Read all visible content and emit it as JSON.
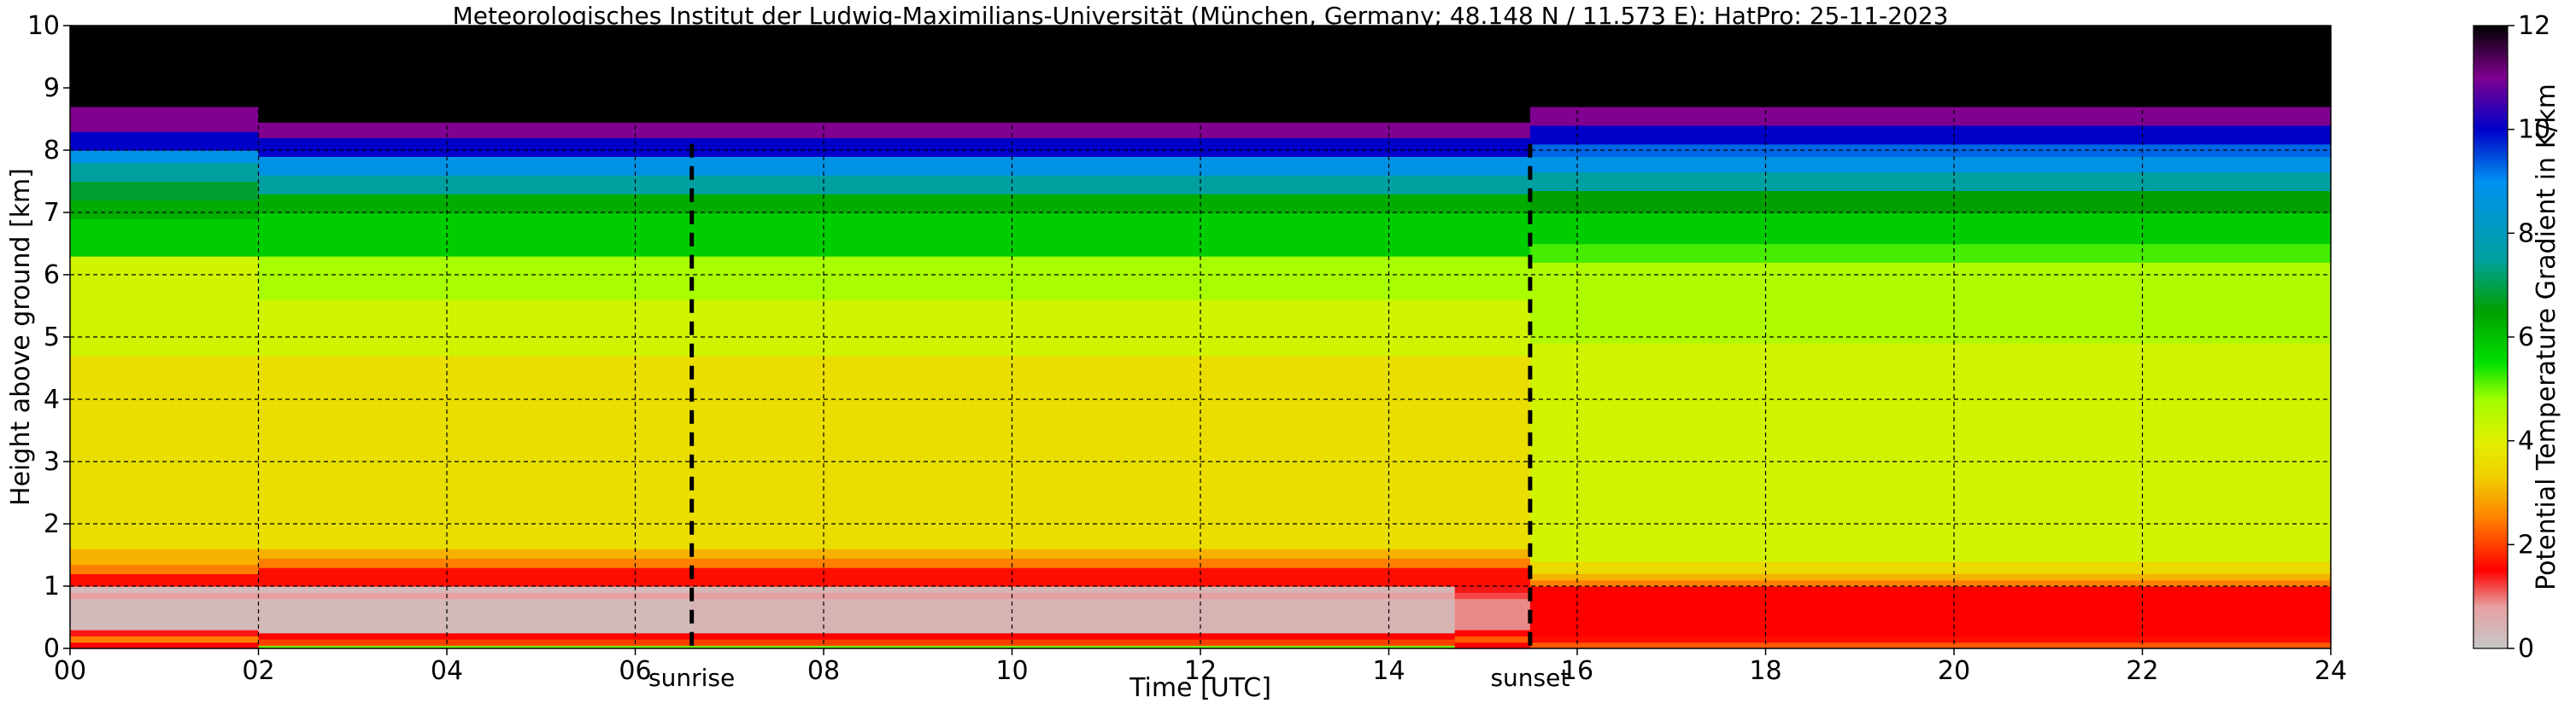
{
  "chart_data": {
    "type": "heatmap",
    "title": "Meteorologisches Institut der Ludwig-Maximilians-Universität (München, Germany; 48.148 N / 11.573 E):    HatPro: 25-11-2023",
    "xlabel": "Time [UTC]",
    "ylabel": "Height above ground [km]",
    "xlim": [
      0,
      24
    ],
    "ylim": [
      0,
      10
    ],
    "x_ticks": [
      0,
      2,
      4,
      6,
      8,
      10,
      12,
      14,
      16,
      18,
      20,
      22,
      24
    ],
    "x_tick_labels": [
      "00",
      "02",
      "04",
      "06",
      "08",
      "10",
      "12",
      "14",
      "16",
      "18",
      "20",
      "22",
      "24"
    ],
    "y_ticks": [
      0,
      1,
      2,
      3,
      4,
      5,
      6,
      7,
      8,
      9,
      10
    ],
    "y_tick_labels": [
      "0",
      "1",
      "2",
      "3",
      "4",
      "5",
      "6",
      "7",
      "8",
      "9",
      "10"
    ],
    "grid": true,
    "colorbar": {
      "label": "Potential Temperature Gradient in K/km",
      "range": [
        0,
        12
      ],
      "ticks": [
        0,
        2,
        4,
        6,
        8,
        10,
        12
      ],
      "tick_labels": [
        "0",
        "2",
        "4",
        "6",
        "8",
        "10",
        "12"
      ],
      "colors": [
        {
          "value": 0,
          "color": "#c8c8c8"
        },
        {
          "value": 0.8,
          "color": "#e6a0a0"
        },
        {
          "value": 1.5,
          "color": "#ff0000"
        },
        {
          "value": 2.5,
          "color": "#ff8000"
        },
        {
          "value": 3.3,
          "color": "#f0d000"
        },
        {
          "value": 4.0,
          "color": "#e0f000"
        },
        {
          "value": 4.8,
          "color": "#a0ff00"
        },
        {
          "value": 5.5,
          "color": "#00e000"
        },
        {
          "value": 6.5,
          "color": "#00a000"
        },
        {
          "value": 7.5,
          "color": "#00a0a0"
        },
        {
          "value": 9.0,
          "color": "#0090f0"
        },
        {
          "value": 10.0,
          "color": "#0000c8"
        },
        {
          "value": 11.0,
          "color": "#800090"
        },
        {
          "value": 12.0,
          "color": "#000000"
        }
      ]
    },
    "markers": [
      {
        "label": "sunrise",
        "time": 6.6
      },
      {
        "label": "sunset",
        "time": 15.5
      }
    ],
    "time_segments": [
      {
        "name": "night-early",
        "start": 0,
        "end": 2
      },
      {
        "name": "morning",
        "start": 2,
        "end": 6.6
      },
      {
        "name": "day",
        "start": 6.6,
        "end": 14.7
      },
      {
        "name": "late-afternoon",
        "start": 14.7,
        "end": 15.5
      },
      {
        "name": "evening",
        "start": 15.5,
        "end": 24
      }
    ],
    "profiles": {
      "night-early": [
        {
          "from": 0.0,
          "to": 0.1,
          "value": 1.5
        },
        {
          "from": 0.1,
          "to": 0.2,
          "value": 2.5
        },
        {
          "from": 0.2,
          "to": 0.3,
          "value": 1.4
        },
        {
          "from": 0.3,
          "to": 0.8,
          "value": 0.3
        },
        {
          "from": 0.8,
          "to": 0.9,
          "value": 0.8
        },
        {
          "from": 0.9,
          "to": 1.0,
          "value": 0.3
        },
        {
          "from": 1.0,
          "to": 1.2,
          "value": 1.6
        },
        {
          "from": 1.2,
          "to": 1.35,
          "value": 2.5
        },
        {
          "from": 1.35,
          "to": 1.6,
          "value": 3.0
        },
        {
          "from": 1.6,
          "to": 4.7,
          "value": 3.6
        },
        {
          "from": 4.7,
          "to": 6.3,
          "value": 4.2
        },
        {
          "from": 6.3,
          "to": 6.9,
          "value": 5.8
        },
        {
          "from": 6.9,
          "to": 7.2,
          "value": 6.3
        },
        {
          "from": 7.2,
          "to": 7.5,
          "value": 6.8
        },
        {
          "from": 7.5,
          "to": 7.8,
          "value": 7.5
        },
        {
          "from": 7.8,
          "to": 8.0,
          "value": 8.8
        },
        {
          "from": 8.0,
          "to": 8.3,
          "value": 10.0
        },
        {
          "from": 8.3,
          "to": 8.7,
          "value": 11.0
        },
        {
          "from": 8.7,
          "to": 10.0,
          "value": 12.0
        }
      ],
      "morning": [
        {
          "from": 0.0,
          "to": 0.05,
          "value": 5.0
        },
        {
          "from": 0.05,
          "to": 0.15,
          "value": 2.0
        },
        {
          "from": 0.15,
          "to": 0.25,
          "value": 1.5
        },
        {
          "from": 0.25,
          "to": 0.8,
          "value": 0.3
        },
        {
          "from": 0.8,
          "to": 0.9,
          "value": 0.8
        },
        {
          "from": 0.9,
          "to": 1.0,
          "value": 0.3
        },
        {
          "from": 1.0,
          "to": 1.3,
          "value": 1.6
        },
        {
          "from": 1.3,
          "to": 1.45,
          "value": 2.5
        },
        {
          "from": 1.45,
          "to": 1.6,
          "value": 3.0
        },
        {
          "from": 1.6,
          "to": 4.7,
          "value": 3.6
        },
        {
          "from": 4.7,
          "to": 5.6,
          "value": 4.2
        },
        {
          "from": 5.6,
          "to": 6.3,
          "value": 4.7
        },
        {
          "from": 6.3,
          "to": 7.0,
          "value": 5.8
        },
        {
          "from": 7.0,
          "to": 7.3,
          "value": 6.3
        },
        {
          "from": 7.3,
          "to": 7.6,
          "value": 7.5
        },
        {
          "from": 7.6,
          "to": 7.9,
          "value": 8.8
        },
        {
          "from": 7.9,
          "to": 8.2,
          "value": 10.0
        },
        {
          "from": 8.2,
          "to": 8.45,
          "value": 11.0
        },
        {
          "from": 8.45,
          "to": 10.0,
          "value": 12.0
        }
      ],
      "day": [
        {
          "from": 0.0,
          "to": 0.05,
          "value": 5.0
        },
        {
          "from": 0.05,
          "to": 0.15,
          "value": 2.0
        },
        {
          "from": 0.15,
          "to": 0.25,
          "value": 1.5
        },
        {
          "from": 0.25,
          "to": 0.8,
          "value": 0.4
        },
        {
          "from": 0.8,
          "to": 0.9,
          "value": 0.8
        },
        {
          "from": 0.9,
          "to": 1.0,
          "value": 0.4
        },
        {
          "from": 1.0,
          "to": 1.3,
          "value": 1.6
        },
        {
          "from": 1.3,
          "to": 1.45,
          "value": 2.5
        },
        {
          "from": 1.45,
          "to": 1.6,
          "value": 3.0
        },
        {
          "from": 1.6,
          "to": 4.7,
          "value": 3.6
        },
        {
          "from": 4.7,
          "to": 5.6,
          "value": 4.2
        },
        {
          "from": 5.6,
          "to": 6.3,
          "value": 4.7
        },
        {
          "from": 6.3,
          "to": 7.0,
          "value": 5.8
        },
        {
          "from": 7.0,
          "to": 7.3,
          "value": 6.3
        },
        {
          "from": 7.3,
          "to": 7.6,
          "value": 7.5
        },
        {
          "from": 7.6,
          "to": 7.9,
          "value": 8.8
        },
        {
          "from": 7.9,
          "to": 8.2,
          "value": 10.0
        },
        {
          "from": 8.2,
          "to": 8.45,
          "value": 11.0
        },
        {
          "from": 8.45,
          "to": 10.0,
          "value": 12.0
        }
      ],
      "late-afternoon": [
        {
          "from": 0.0,
          "to": 0.1,
          "value": 1.5
        },
        {
          "from": 0.1,
          "to": 0.2,
          "value": 2.2
        },
        {
          "from": 0.2,
          "to": 0.3,
          "value": 1.5
        },
        {
          "from": 0.3,
          "to": 0.8,
          "value": 0.9
        },
        {
          "from": 0.8,
          "to": 0.9,
          "value": 1.2
        },
        {
          "from": 0.9,
          "to": 1.0,
          "value": 1.4
        },
        {
          "from": 1.0,
          "to": 1.3,
          "value": 1.6
        },
        {
          "from": 1.3,
          "to": 1.45,
          "value": 2.5
        },
        {
          "from": 1.45,
          "to": 1.6,
          "value": 3.0
        },
        {
          "from": 1.6,
          "to": 4.7,
          "value": 3.6
        },
        {
          "from": 4.7,
          "to": 5.6,
          "value": 4.2
        },
        {
          "from": 5.6,
          "to": 6.3,
          "value": 4.7
        },
        {
          "from": 6.3,
          "to": 7.0,
          "value": 5.8
        },
        {
          "from": 7.0,
          "to": 7.3,
          "value": 6.3
        },
        {
          "from": 7.3,
          "to": 7.6,
          "value": 7.5
        },
        {
          "from": 7.6,
          "to": 7.9,
          "value": 8.8
        },
        {
          "from": 7.9,
          "to": 8.2,
          "value": 10.0
        },
        {
          "from": 8.2,
          "to": 8.45,
          "value": 11.0
        },
        {
          "from": 8.45,
          "to": 10.0,
          "value": 12.0
        }
      ],
      "evening": [
        {
          "from": 0.0,
          "to": 0.1,
          "value": 2.2
        },
        {
          "from": 0.1,
          "to": 0.2,
          "value": 1.6
        },
        {
          "from": 0.2,
          "to": 1.0,
          "value": 1.5
        },
        {
          "from": 1.0,
          "to": 1.1,
          "value": 2.5
        },
        {
          "from": 1.1,
          "to": 1.2,
          "value": 3.0
        },
        {
          "from": 1.2,
          "to": 1.4,
          "value": 3.5
        },
        {
          "from": 1.4,
          "to": 4.9,
          "value": 4.2
        },
        {
          "from": 4.9,
          "to": 6.2,
          "value": 4.6
        },
        {
          "from": 6.2,
          "to": 6.5,
          "value": 5.2
        },
        {
          "from": 6.5,
          "to": 7.0,
          "value": 5.8
        },
        {
          "from": 7.0,
          "to": 7.35,
          "value": 6.5
        },
        {
          "from": 7.35,
          "to": 7.65,
          "value": 7.5
        },
        {
          "from": 7.65,
          "to": 7.9,
          "value": 8.8
        },
        {
          "from": 7.9,
          "to": 8.1,
          "value": 9.3
        },
        {
          "from": 8.1,
          "to": 8.4,
          "value": 10.0
        },
        {
          "from": 8.4,
          "to": 8.7,
          "value": 11.0
        },
        {
          "from": 8.7,
          "to": 10.0,
          "value": 12.0
        }
      ]
    }
  }
}
